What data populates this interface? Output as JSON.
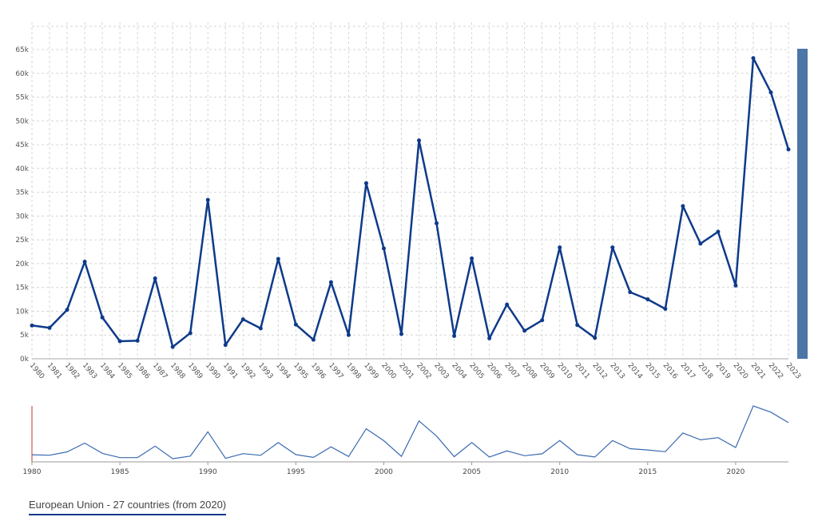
{
  "chart_data": [
    {
      "type": "line",
      "x": [
        1980,
        1981,
        1982,
        1983,
        1984,
        1985,
        1986,
        1987,
        1988,
        1989,
        1990,
        1991,
        1992,
        1993,
        1994,
        1995,
        1996,
        1997,
        1998,
        1999,
        2000,
        2001,
        2002,
        2003,
        2004,
        2005,
        2006,
        2007,
        2008,
        2009,
        2010,
        2011,
        2012,
        2013,
        2014,
        2015,
        2016,
        2017,
        2018,
        2019,
        2020,
        2021,
        2022,
        2023
      ],
      "series": [
        {
          "name": "European Union - 27 countries (from 2020)",
          "values": [
            7000,
            6500,
            10300,
            20400,
            8700,
            3700,
            3800,
            16900,
            2500,
            5400,
            33400,
            2900,
            8300,
            6400,
            21000,
            7200,
            4000,
            16100,
            5000,
            36900,
            23200,
            5200,
            45900,
            28500,
            4800,
            21100,
            4300,
            11400,
            5900,
            8100,
            23400,
            7100,
            4400,
            23400,
            14000,
            12500,
            10500,
            32100,
            24200,
            26700,
            15400,
            63200,
            56000,
            44000
          ]
        }
      ],
      "ylim": [
        0,
        65000
      ],
      "yticks": [
        "0k",
        "5k",
        "10k",
        "15k",
        "20k",
        "25k",
        "30k",
        "35k",
        "40k",
        "45k",
        "50k",
        "55k",
        "60k",
        "65k"
      ],
      "xticks": [
        "1980",
        "1981",
        "1982",
        "1983",
        "1984",
        "1985",
        "1986",
        "1987",
        "1988",
        "1989",
        "1990",
        "1991",
        "1992",
        "1993",
        "1994",
        "1995",
        "1996",
        "1997",
        "1998",
        "1999",
        "2000",
        "2001",
        "2002",
        "2003",
        "2004",
        "2005",
        "2006",
        "2007",
        "2008",
        "2009",
        "2010",
        "2011",
        "2012",
        "2013",
        "2014",
        "2015",
        "2016",
        "2017",
        "2018",
        "2019",
        "2020",
        "2021",
        "2022",
        "2023"
      ],
      "grid": true,
      "line_color": "#0e3a8a"
    },
    {
      "type": "line",
      "role": "navigator",
      "xticks": [
        "1980",
        "1985",
        "1990",
        "1995",
        "2000",
        "2005",
        "2010",
        "2015",
        "2020"
      ],
      "line_color": "#3a6ab0"
    }
  ],
  "legend": {
    "label": "European Union - 27 countries (from 2020)",
    "underline_color": "#0e3a8a"
  }
}
